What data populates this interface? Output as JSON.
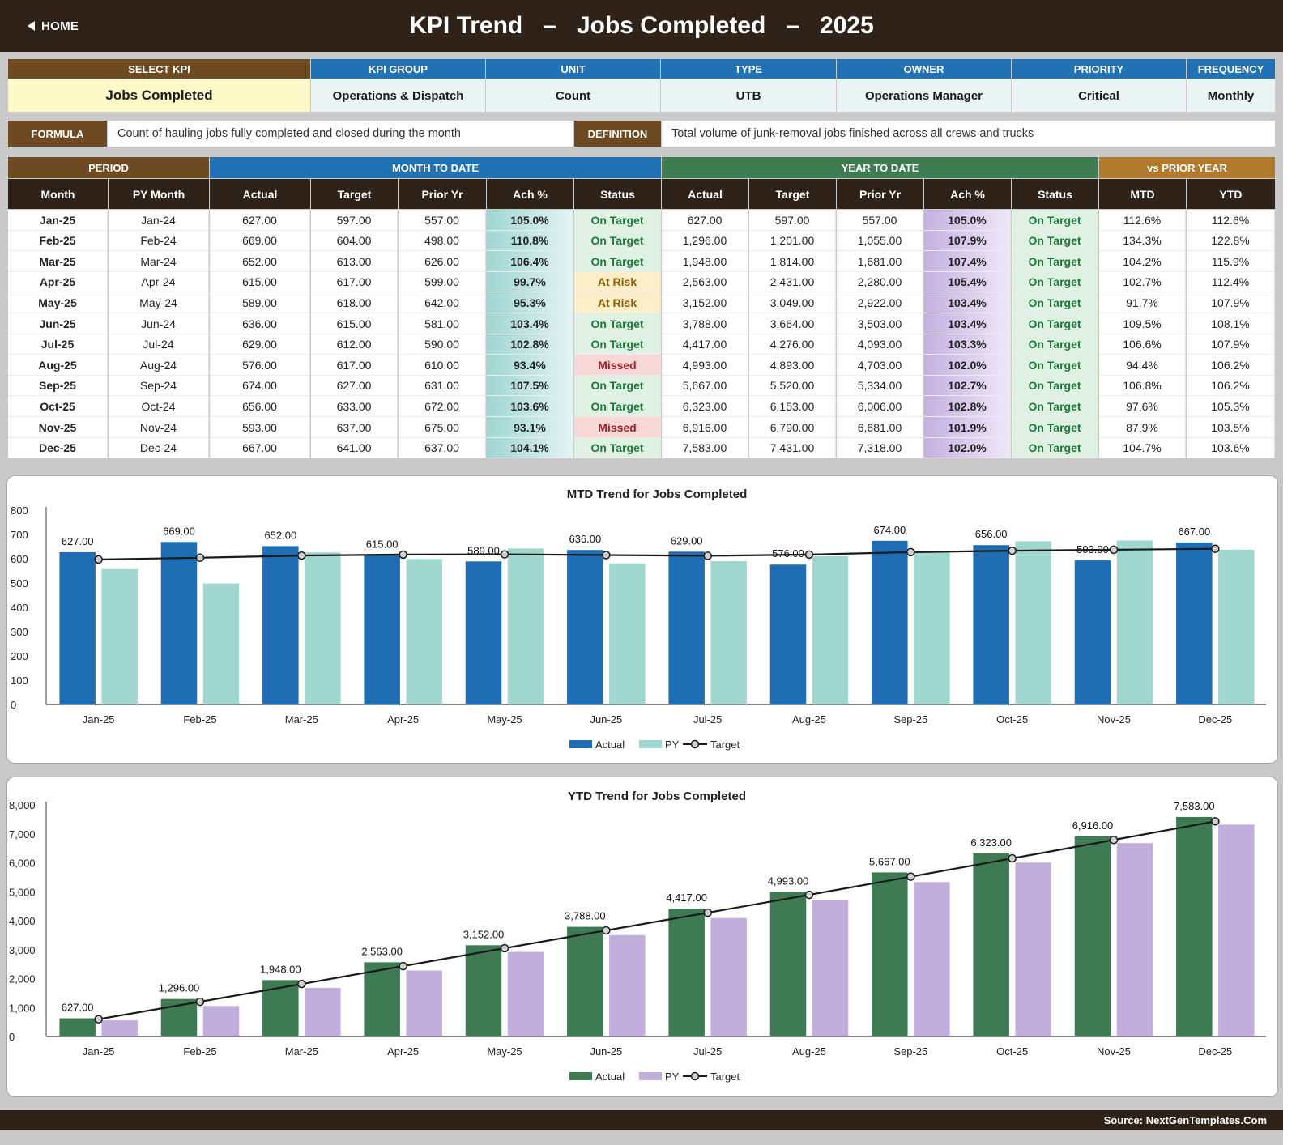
{
  "header": {
    "home_label": "HOME",
    "title": "KPI Trend   –   Jobs Completed   –   2025"
  },
  "kpi_info": {
    "headers": [
      "SELECT KPI",
      "KPI GROUP",
      "UNIT",
      "TYPE",
      "OWNER",
      "PRIORITY",
      "FREQUENCY"
    ],
    "values": [
      "Jobs Completed",
      "Operations & Dispatch",
      "Count",
      "UTB",
      "Operations Manager",
      "Critical",
      "Monthly"
    ]
  },
  "formula": {
    "formula_label": "FORMULA",
    "formula_text": "Count of hauling jobs fully completed and closed during the month",
    "definition_label": "DEFINITION",
    "definition_text": "Total volume of junk-removal jobs finished across all crews and trucks"
  },
  "table": {
    "group_headers": {
      "period": "PERIOD",
      "mtd": "MONTH TO DATE",
      "ytd": "YEAR TO DATE",
      "vs_py": "vs PRIOR YEAR"
    },
    "columns": [
      "Month",
      "PY Month",
      "Actual",
      "Target",
      "Prior Yr",
      "Ach %",
      "Status",
      "Actual",
      "Target",
      "Prior Yr",
      "Ach %",
      "Status",
      "MTD",
      "YTD"
    ],
    "rows": [
      [
        "Jan-25",
        "Jan-24",
        "627.00",
        "597.00",
        "557.00",
        "105.0%",
        "On Target",
        "627.00",
        "597.00",
        "557.00",
        "105.0%",
        "On Target",
        "112.6%",
        "112.6%"
      ],
      [
        "Feb-25",
        "Feb-24",
        "669.00",
        "604.00",
        "498.00",
        "110.8%",
        "On Target",
        "1,296.00",
        "1,201.00",
        "1,055.00",
        "107.9%",
        "On Target",
        "134.3%",
        "122.8%"
      ],
      [
        "Mar-25",
        "Mar-24",
        "652.00",
        "613.00",
        "626.00",
        "106.4%",
        "On Target",
        "1,948.00",
        "1,814.00",
        "1,681.00",
        "107.4%",
        "On Target",
        "104.2%",
        "115.9%"
      ],
      [
        "Apr-25",
        "Apr-24",
        "615.00",
        "617.00",
        "599.00",
        "99.7%",
        "At Risk",
        "2,563.00",
        "2,431.00",
        "2,280.00",
        "105.4%",
        "On Target",
        "102.7%",
        "112.4%"
      ],
      [
        "May-25",
        "May-24",
        "589.00",
        "618.00",
        "642.00",
        "95.3%",
        "At Risk",
        "3,152.00",
        "3,049.00",
        "2,922.00",
        "103.4%",
        "On Target",
        "91.7%",
        "107.9%"
      ],
      [
        "Jun-25",
        "Jun-24",
        "636.00",
        "615.00",
        "581.00",
        "103.4%",
        "On Target",
        "3,788.00",
        "3,664.00",
        "3,503.00",
        "103.4%",
        "On Target",
        "109.5%",
        "108.1%"
      ],
      [
        "Jul-25",
        "Jul-24",
        "629.00",
        "612.00",
        "590.00",
        "102.8%",
        "On Target",
        "4,417.00",
        "4,276.00",
        "4,093.00",
        "103.3%",
        "On Target",
        "106.6%",
        "107.9%"
      ],
      [
        "Aug-25",
        "Aug-24",
        "576.00",
        "617.00",
        "610.00",
        "93.4%",
        "Missed",
        "4,993.00",
        "4,893.00",
        "4,703.00",
        "102.0%",
        "On Target",
        "94.4%",
        "106.2%"
      ],
      [
        "Sep-25",
        "Sep-24",
        "674.00",
        "627.00",
        "631.00",
        "107.5%",
        "On Target",
        "5,667.00",
        "5,520.00",
        "5,334.00",
        "102.7%",
        "On Target",
        "106.8%",
        "106.2%"
      ],
      [
        "Oct-25",
        "Oct-24",
        "656.00",
        "633.00",
        "672.00",
        "103.6%",
        "On Target",
        "6,323.00",
        "6,153.00",
        "6,006.00",
        "102.8%",
        "On Target",
        "97.6%",
        "105.3%"
      ],
      [
        "Nov-25",
        "Nov-24",
        "593.00",
        "637.00",
        "675.00",
        "93.1%",
        "Missed",
        "6,916.00",
        "6,790.00",
        "6,681.00",
        "101.9%",
        "On Target",
        "87.9%",
        "103.5%"
      ],
      [
        "Dec-25",
        "Dec-24",
        "667.00",
        "641.00",
        "637.00",
        "104.1%",
        "On Target",
        "7,583.00",
        "7,431.00",
        "7,318.00",
        "102.0%",
        "On Target",
        "104.7%",
        "103.6%"
      ]
    ]
  },
  "colors": {
    "mtd_actual": "#1f6db3",
    "mtd_py": "#9fd6cd",
    "ytd_actual": "#3e7b52",
    "ytd_py": "#c2aedd",
    "target_line": "#1a1a1a"
  },
  "chart_data": [
    {
      "type": "bar",
      "title": "MTD Trend for Jobs Completed",
      "categories": [
        "Jan-25",
        "Feb-25",
        "Mar-25",
        "Apr-25",
        "May-25",
        "Jun-25",
        "Jul-25",
        "Aug-25",
        "Sep-25",
        "Oct-25",
        "Nov-25",
        "Dec-25"
      ],
      "series": [
        {
          "name": "Actual",
          "type": "bar",
          "values": [
            627,
            669,
            652,
            615,
            589,
            636,
            629,
            576,
            674,
            656,
            593,
            667
          ]
        },
        {
          "name": "PY",
          "type": "bar",
          "values": [
            557,
            498,
            626,
            599,
            642,
            581,
            590,
            610,
            631,
            672,
            675,
            637
          ]
        },
        {
          "name": "Target",
          "type": "line",
          "values": [
            597,
            604,
            613,
            617,
            618,
            615,
            612,
            617,
            627,
            633,
            637,
            641
          ]
        }
      ],
      "data_labels": [
        "627.00",
        "669.00",
        "652.00",
        "615.00",
        "589.00",
        "636.00",
        "629.00",
        "576.00",
        "674.00",
        "656.00",
        "593.00",
        "667.00"
      ],
      "y_ticks": [
        "0",
        "100",
        "200",
        "300",
        "400",
        "500",
        "600",
        "700",
        "800"
      ],
      "ylim": [
        0,
        800
      ],
      "legend": "bottom",
      "grid": false
    },
    {
      "type": "bar",
      "title": "YTD Trend for Jobs Completed",
      "categories": [
        "Jan-25",
        "Feb-25",
        "Mar-25",
        "Apr-25",
        "May-25",
        "Jun-25",
        "Jul-25",
        "Aug-25",
        "Sep-25",
        "Oct-25",
        "Nov-25",
        "Dec-25"
      ],
      "series": [
        {
          "name": "Actual",
          "type": "bar",
          "values": [
            627,
            1296,
            1948,
            2563,
            3152,
            3788,
            4417,
            4993,
            5667,
            6323,
            6916,
            7583
          ]
        },
        {
          "name": "PY",
          "type": "bar",
          "values": [
            557,
            1055,
            1681,
            2280,
            2922,
            3503,
            4093,
            4703,
            5334,
            6006,
            6681,
            7318
          ]
        },
        {
          "name": "Target",
          "type": "line",
          "values": [
            597,
            1201,
            1814,
            2431,
            3049,
            3664,
            4276,
            4893,
            5520,
            6153,
            6790,
            7431
          ]
        }
      ],
      "data_labels": [
        "627.00",
        "1,296.00",
        "1,948.00",
        "2,563.00",
        "3,152.00",
        "3,788.00",
        "4,417.00",
        "4,993.00",
        "5,667.00",
        "6,323.00",
        "6,916.00",
        "7,583.00"
      ],
      "y_ticks": [
        "0",
        "1,000",
        "2,000",
        "3,000",
        "4,000",
        "5,000",
        "6,000",
        "7,000",
        "8,000"
      ],
      "ylim": [
        0,
        8000
      ],
      "legend": "bottom",
      "grid": false
    }
  ],
  "footer": {
    "source": "Source: NextGenTemplates.Com"
  }
}
